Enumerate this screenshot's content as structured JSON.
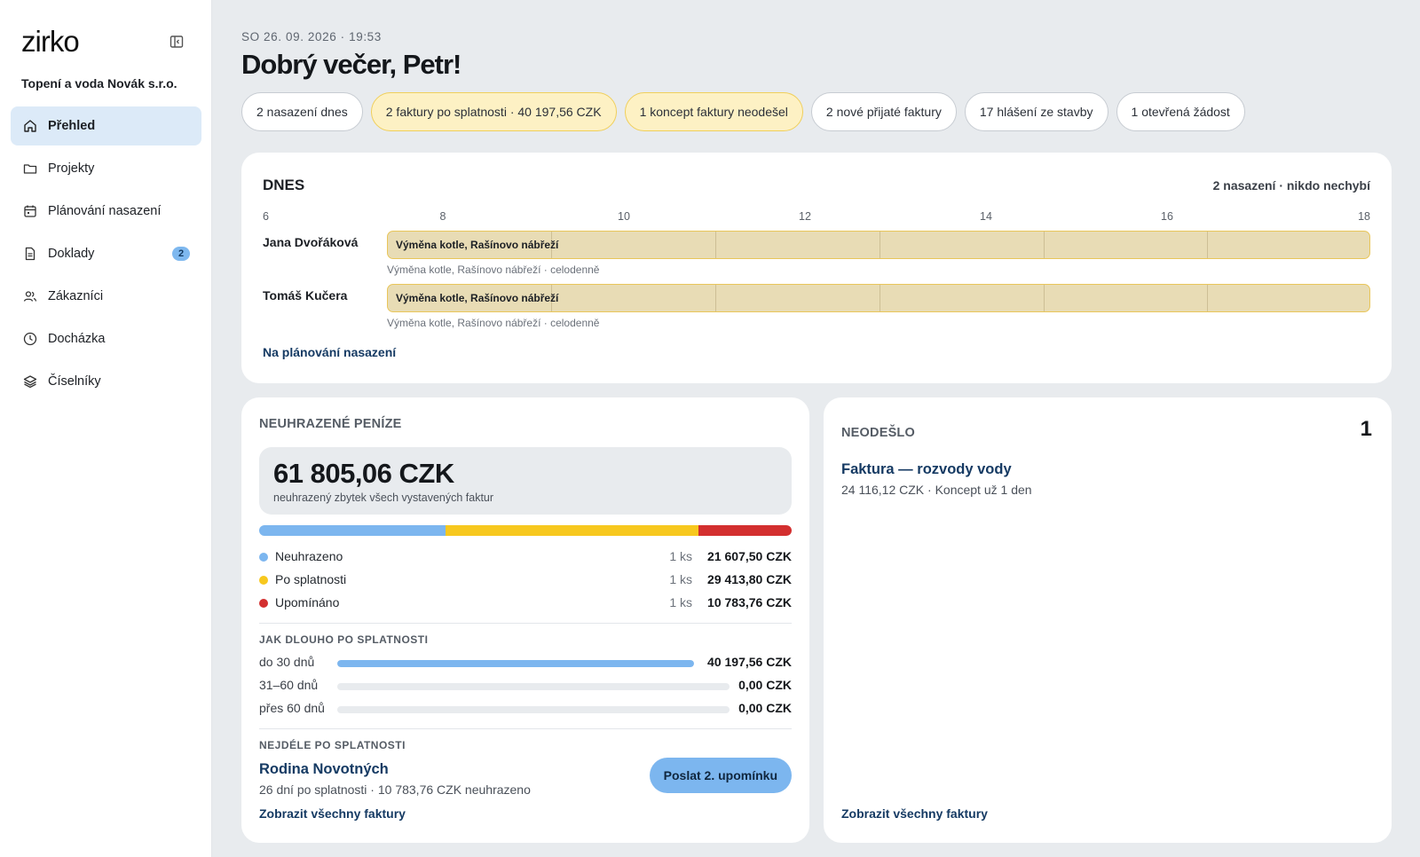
{
  "sidebar": {
    "logo": "zirko",
    "company": "Topení a voda Novák s.r.o.",
    "items": [
      {
        "label": "Přehled",
        "icon": "home-icon",
        "active": true
      },
      {
        "label": "Projekty",
        "icon": "folder-icon"
      },
      {
        "label": "Plánování nasazení",
        "icon": "calendar-icon"
      },
      {
        "label": "Doklady",
        "icon": "document-icon",
        "badge": "2"
      },
      {
        "label": "Zákazníci",
        "icon": "users-icon"
      },
      {
        "label": "Docházka",
        "icon": "clock-icon"
      },
      {
        "label": "Číselníky",
        "icon": "layers-icon"
      }
    ]
  },
  "header": {
    "datetime": "SO 26. 09. 2026 · 19:53",
    "greeting": "Dobrý večer, Petr!"
  },
  "chips": [
    {
      "label": "2 nasazení dnes",
      "style": "default"
    },
    {
      "label": "2 faktury po splatnosti · 40 197,56 CZK",
      "style": "warn"
    },
    {
      "label": "1 koncept faktury neodešel",
      "style": "warn"
    },
    {
      "label": "2 nové přijaté faktury",
      "style": "default"
    },
    {
      "label": "17 hlášení ze stavby",
      "style": "default"
    },
    {
      "label": "1 otevřená žádost",
      "style": "default"
    }
  ],
  "today": {
    "title": "DNES",
    "summary": "2 nasazení · nikdo nechybí",
    "hours": [
      "6",
      "8",
      "10",
      "12",
      "14",
      "16",
      "18"
    ],
    "rows": [
      {
        "name": "Jana Dvořáková",
        "bar_label": "Výměna kotle, Rašínovo nábřeží",
        "sub": "Výměna kotle, Rašínovo nábřeží · celodenně"
      },
      {
        "name": "Tomáš Kučera",
        "bar_label": "Výměna kotle, Rašínovo nábřeží",
        "sub": "Výměna kotle, Rašínovo nábřeží · celodenně"
      }
    ],
    "link": "Na plánování nasazení"
  },
  "money": {
    "title": "NEUHRAZENÉ PENÍZE",
    "total": "61 805,06 CZK",
    "total_caption": "neuhrazený zbytek všech vystavených faktur",
    "breakdown": [
      {
        "label": "Neuhrazeno",
        "count": "1 ks",
        "amount": "21 607,50 CZK",
        "value": 21607.5,
        "color": "#7cb6ef"
      },
      {
        "label": "Po splatnosti",
        "count": "1 ks",
        "amount": "29 413,80 CZK",
        "value": 29413.8,
        "color": "#f7c81e"
      },
      {
        "label": "Upomínáno",
        "count": "1 ks",
        "amount": "10 783,76 CZK",
        "value": 10783.76,
        "color": "#d32f2f"
      }
    ],
    "aging_title": "JAK DLOUHO PO SPLATNOSTI",
    "aging": [
      {
        "label": "do 30 dnů",
        "amount": "40 197,56 CZK",
        "fraction": 1.0
      },
      {
        "label": "31–60 dnů",
        "amount": "0,00 CZK",
        "fraction": 0
      },
      {
        "label": "přes 60 dnů",
        "amount": "0,00 CZK",
        "fraction": 0
      }
    ],
    "oldest_title": "NEJDÉLE PO SPLATNOSTI",
    "oldest_name": "Rodina Novotných",
    "oldest_sub": "26 dní po splatnosti · 10 783,76 CZK neuhrazeno",
    "reminder_button": "Poslat 2. upomínku",
    "link": "Zobrazit všechny faktury"
  },
  "unsent": {
    "title": "NEODEŠLO",
    "count": "1",
    "item_title": "Faktura — rozvody vody",
    "item_sub": "24 116,12 CZK · Koncept už 1 den",
    "link": "Zobrazit všechny faktury"
  }
}
